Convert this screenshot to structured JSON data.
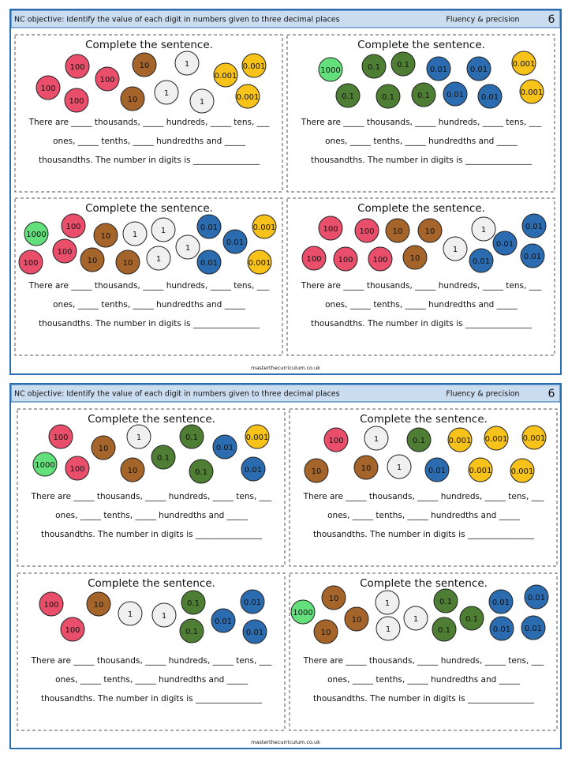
{
  "sheets": [
    {
      "header": {
        "objective": "NC objective: Identify the value of each digit in numbers given to three decimal places",
        "strand": "Fluency & precision",
        "number": "6"
      },
      "panels": [
        {
          "title": "Complete the sentence.",
          "lines": [
            "There are _____ thousands, _____ hundreds, _____ tens, ___",
            "ones, _____ tenths, _____ hundredths and _____",
            "thousandths. The number in digits is ________________"
          ],
          "counters": [
            {
              "label": "100",
              "color": "#e94f6b"
            },
            {
              "label": "100",
              "color": "#e94f6b"
            },
            {
              "label": "100",
              "color": "#e94f6b"
            },
            {
              "label": "100",
              "color": "#e94f6b"
            },
            {
              "label": "10",
              "color": "#a5652a"
            },
            {
              "label": "10",
              "color": "#a5652a"
            },
            {
              "label": "1",
              "color": "#f0f0f0"
            },
            {
              "label": "1",
              "color": "#f0f0f0"
            },
            {
              "label": "1",
              "color": "#f0f0f0"
            },
            {
              "label": "0.001",
              "color": "#f7c21a"
            },
            {
              "label": "0.001",
              "color": "#f7c21a"
            },
            {
              "label": "0.001",
              "color": "#f7c21a"
            }
          ]
        },
        {
          "title": "Complete the sentence.",
          "lines": [
            "There are _____ thousands, _____ hundreds, _____ tens, ___",
            "ones, _____ tenths, _____ hundredths and _____",
            "thousandths. The number in digits is ________________"
          ],
          "counters": [
            {
              "label": "1000",
              "color": "#63e07c"
            },
            {
              "label": "0.1",
              "color": "#4e7d34"
            },
            {
              "label": "0.1",
              "color": "#4e7d34"
            },
            {
              "label": "0.1",
              "color": "#4e7d34"
            },
            {
              "label": "0.1",
              "color": "#4e7d34"
            },
            {
              "label": "0.1",
              "color": "#4e7d34"
            },
            {
              "label": "0.01",
              "color": "#2b6cb0"
            },
            {
              "label": "0.01",
              "color": "#2b6cb0"
            },
            {
              "label": "0.01",
              "color": "#2b6cb0"
            },
            {
              "label": "0.01",
              "color": "#2b6cb0"
            },
            {
              "label": "0.001",
              "color": "#f7c21a"
            },
            {
              "label": "0.001",
              "color": "#f7c21a"
            }
          ]
        },
        {
          "title": "Complete the sentence.",
          "lines": [
            "There are _____ thousands, _____ hundreds, _____ tens, ___",
            "ones, _____ tenths, _____ hundredths and _____",
            "thousandths. The number in digits is ________________"
          ],
          "counters": [
            {
              "label": "1000",
              "color": "#63e07c"
            },
            {
              "label": "100",
              "color": "#e94f6b"
            },
            {
              "label": "100",
              "color": "#e94f6b"
            },
            {
              "label": "100",
              "color": "#e94f6b"
            },
            {
              "label": "10",
              "color": "#a5652a"
            },
            {
              "label": "10",
              "color": "#a5652a"
            },
            {
              "label": "10",
              "color": "#a5652a"
            },
            {
              "label": "1",
              "color": "#f0f0f0"
            },
            {
              "label": "1",
              "color": "#f0f0f0"
            },
            {
              "label": "1",
              "color": "#f0f0f0"
            },
            {
              "label": "1",
              "color": "#f0f0f0"
            },
            {
              "label": "0.01",
              "color": "#2b6cb0"
            },
            {
              "label": "0.01",
              "color": "#2b6cb0"
            },
            {
              "label": "0.01",
              "color": "#2b6cb0"
            },
            {
              "label": "0.001",
              "color": "#f7c21a"
            },
            {
              "label": "0.001",
              "color": "#f7c21a"
            }
          ]
        },
        {
          "title": "Complete the sentence.",
          "lines": [
            "There are _____ thousands, _____ hundreds, _____ tens, ___",
            "ones, _____ tenths, _____ hundredths and _____",
            "thousandths. The number in digits is ________________"
          ],
          "counters": [
            {
              "label": "100",
              "color": "#e94f6b"
            },
            {
              "label": "100",
              "color": "#e94f6b"
            },
            {
              "label": "100",
              "color": "#e94f6b"
            },
            {
              "label": "100",
              "color": "#e94f6b"
            },
            {
              "label": "100",
              "color": "#e94f6b"
            },
            {
              "label": "10",
              "color": "#a5652a"
            },
            {
              "label": "10",
              "color": "#a5652a"
            },
            {
              "label": "10",
              "color": "#a5652a"
            },
            {
              "label": "1",
              "color": "#f0f0f0"
            },
            {
              "label": "1",
              "color": "#f0f0f0"
            },
            {
              "label": "0.01",
              "color": "#2b6cb0"
            },
            {
              "label": "0.01",
              "color": "#2b6cb0"
            },
            {
              "label": "0.01",
              "color": "#2b6cb0"
            },
            {
              "label": "0.01",
              "color": "#2b6cb0"
            }
          ]
        }
      ],
      "footer": "masterthecurriculum.co.uk"
    },
    {
      "header": {
        "objective": "NC objective: Identify the value of each digit in numbers given to three decimal places",
        "strand": "Fluency & precision",
        "number": "6"
      },
      "panels": [
        {
          "title": "Complete the sentence.",
          "lines": [
            "There are _____ thousands, _____ hundreds, _____ tens, ___",
            "ones, _____ tenths, _____ hundredths and _____",
            "thousandths. The number in digits is ________________"
          ],
          "counters": [
            {
              "label": "100",
              "color": "#e94f6b"
            },
            {
              "label": "1000",
              "color": "#63e07c"
            },
            {
              "label": "100",
              "color": "#e94f6b"
            },
            {
              "label": "10",
              "color": "#a5652a"
            },
            {
              "label": "1",
              "color": "#f0f0f0"
            },
            {
              "label": "0.1",
              "color": "#4e7d34"
            },
            {
              "label": "0.1",
              "color": "#4e7d34"
            },
            {
              "label": "0.1",
              "color": "#4e7d34"
            },
            {
              "label": "10",
              "color": "#a5652a"
            },
            {
              "label": "0.01",
              "color": "#2b6cb0"
            },
            {
              "label": "0.001",
              "color": "#f7c21a"
            },
            {
              "label": "0.01",
              "color": "#2b6cb0"
            }
          ]
        },
        {
          "title": "Complete the sentence.",
          "lines": [
            "There are _____ thousands, _____ hundreds, _____ tens, ___",
            "ones, _____ tenths, _____ hundredths and _____",
            "thousandths. The number in digits is ________________"
          ],
          "counters": [
            {
              "label": "100",
              "color": "#e94f6b"
            },
            {
              "label": "10",
              "color": "#a5652a"
            },
            {
              "label": "1",
              "color": "#f0f0f0"
            },
            {
              "label": "10",
              "color": "#a5652a"
            },
            {
              "label": "1",
              "color": "#f0f0f0"
            },
            {
              "label": "0.1",
              "color": "#4e7d34"
            },
            {
              "label": "0.01",
              "color": "#2b6cb0"
            },
            {
              "label": "0.001",
              "color": "#f7c21a"
            },
            {
              "label": "0.001",
              "color": "#f7c21a"
            },
            {
              "label": "0.001",
              "color": "#f7c21a"
            },
            {
              "label": "0.001",
              "color": "#f7c21a"
            },
            {
              "label": "0.001",
              "color": "#f7c21a"
            }
          ]
        },
        {
          "title": "Complete the sentence.",
          "lines": [
            "There are _____ thousands, _____ hundreds, _____ tens, ___",
            "ones, _____ tenths, _____ hundredths and _____",
            "thousandths. The number in digits is ________________"
          ],
          "counters": [
            {
              "label": "100",
              "color": "#e94f6b"
            },
            {
              "label": "100",
              "color": "#e94f6b"
            },
            {
              "label": "10",
              "color": "#a5652a"
            },
            {
              "label": "1",
              "color": "#f0f0f0"
            },
            {
              "label": "1",
              "color": "#f0f0f0"
            },
            {
              "label": "0.1",
              "color": "#4e7d34"
            },
            {
              "label": "0.1",
              "color": "#4e7d34"
            },
            {
              "label": "0.01",
              "color": "#2b6cb0"
            },
            {
              "label": "0.01",
              "color": "#2b6cb0"
            },
            {
              "label": "0.01",
              "color": "#2b6cb0"
            }
          ]
        },
        {
          "title": "Complete the sentence.",
          "lines": [
            "There are _____ thousands, _____ hundreds, _____ tens, ___",
            "ones, _____ tenths, _____ hundredths and _____",
            "thousandths. The number in digits is ________________"
          ],
          "counters": [
            {
              "label": "1000",
              "color": "#63e07c"
            },
            {
              "label": "10",
              "color": "#a5652a"
            },
            {
              "label": "10",
              "color": "#a5652a"
            },
            {
              "label": "10",
              "color": "#a5652a"
            },
            {
              "label": "1",
              "color": "#f0f0f0"
            },
            {
              "label": "1",
              "color": "#f0f0f0"
            },
            {
              "label": "1",
              "color": "#f0f0f0"
            },
            {
              "label": "0.1",
              "color": "#4e7d34"
            },
            {
              "label": "0.1",
              "color": "#4e7d34"
            },
            {
              "label": "0.1",
              "color": "#4e7d34"
            },
            {
              "label": "0.01",
              "color": "#2b6cb0"
            },
            {
              "label": "0.01",
              "color": "#2b6cb0"
            },
            {
              "label": "0.01",
              "color": "#2b6cb0"
            },
            {
              "label": "0.01",
              "color": "#2b6cb0"
            }
          ]
        }
      ],
      "footer": "masterthecurriculum.co.uk"
    }
  ]
}
